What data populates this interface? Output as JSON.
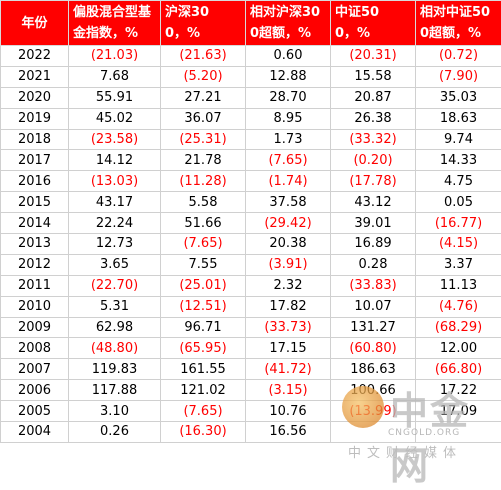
{
  "table": {
    "header": [
      "年份",
      "偏股混合型基金指数，%",
      "沪深300，%",
      "相对沪深300超额，%",
      "中证500，%",
      "相对中证500超额，%"
    ],
    "rows": [
      [
        "2022",
        "(21.03)",
        "(21.63)",
        "0.60",
        "(20.31)",
        "(0.72)"
      ],
      [
        "2021",
        "7.68",
        "(5.20)",
        "12.88",
        "15.58",
        "(7.90)"
      ],
      [
        "2020",
        "55.91",
        "27.21",
        "28.70",
        "20.87",
        "35.03"
      ],
      [
        "2019",
        "45.02",
        "36.07",
        "8.95",
        "26.38",
        "18.63"
      ],
      [
        "2018",
        "(23.58)",
        "(25.31)",
        "1.73",
        "(33.32)",
        "9.74"
      ],
      [
        "2017",
        "14.12",
        "21.78",
        "(7.65)",
        "(0.20)",
        "14.33"
      ],
      [
        "2016",
        "(13.03)",
        "(11.28)",
        "(1.74)",
        "(17.78)",
        "4.75"
      ],
      [
        "2015",
        "43.17",
        "5.58",
        "37.58",
        "43.12",
        "0.05"
      ],
      [
        "2014",
        "22.24",
        "51.66",
        "(29.42)",
        "39.01",
        "(16.77)"
      ],
      [
        "2013",
        "12.73",
        "(7.65)",
        "20.38",
        "16.89",
        "(4.15)"
      ],
      [
        "2012",
        "3.65",
        "7.55",
        "(3.91)",
        "0.28",
        "3.37"
      ],
      [
        "2011",
        "(22.70)",
        "(25.01)",
        "2.32",
        "(33.83)",
        "11.13"
      ],
      [
        "2010",
        "5.31",
        "(12.51)",
        "17.82",
        "10.07",
        "(4.76)"
      ],
      [
        "2009",
        "62.98",
        "96.71",
        "(33.73)",
        "131.27",
        "(68.29)"
      ],
      [
        "2008",
        "(48.80)",
        "(65.95)",
        "17.15",
        "(60.80)",
        "12.00"
      ],
      [
        "2007",
        "119.83",
        "161.55",
        "(41.72)",
        "186.63",
        "(66.80)"
      ],
      [
        "2006",
        "117.88",
        "121.02",
        "(3.15)",
        "100.66",
        "17.22"
      ],
      [
        "2005",
        "3.10",
        "(7.65)",
        "10.76",
        "(13.99)",
        "17.09"
      ],
      [
        "2004",
        "0.26",
        "(16.30)",
        "16.56",
        "",
        ""
      ]
    ]
  },
  "watermark": {
    "brand": "中金网",
    "site": "CNGOLD.ORG",
    "tagline": "中文财经媒体"
  }
}
